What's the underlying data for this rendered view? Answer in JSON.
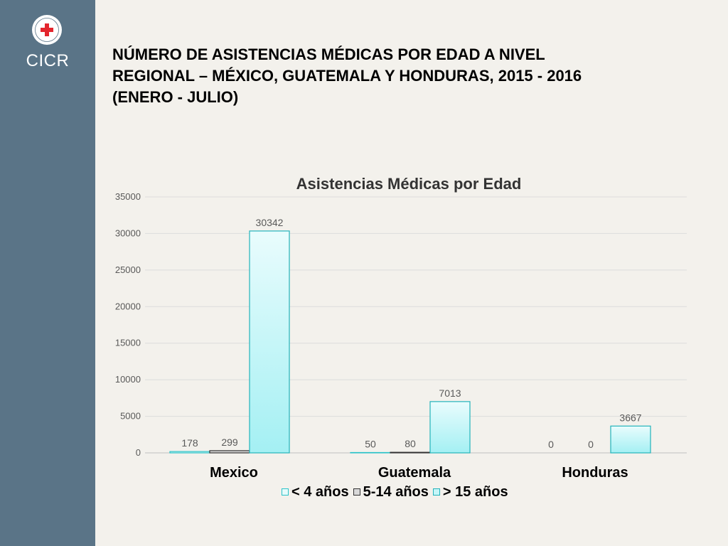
{
  "sidebar": {
    "org_name": "CICR",
    "logo_ring_text": "COMITÉ INTERNATIONAL GENÈVE",
    "sidebar_color": "#5a7487",
    "emblem_color": "#e3262e"
  },
  "slide": {
    "title_line1": "NÚMERO DE ASISTENCIAS MÉDICAS POR EDAD A NIVEL",
    "title_line2": "REGIONAL – MÉXICO, GUATEMALA Y HONDURAS, 2015 - 2016",
    "title_line3": "(ENERO - JULIO)"
  },
  "chart_data": {
    "type": "bar",
    "title": "Asistencias Médicas por Edad",
    "categories": [
      "Mexico",
      "Guatemala",
      "Honduras"
    ],
    "series": [
      {
        "name": "< 4 años",
        "values": [
          178,
          50,
          0
        ],
        "color": "#e6fbfb"
      },
      {
        "name": "5-14 años",
        "values": [
          299,
          80,
          0
        ],
        "color": "#d9d9d9"
      },
      {
        "name": "> 15 años",
        "values": [
          30342,
          7013,
          3667
        ],
        "color": "#b3f3f5"
      }
    ],
    "yticks": [
      "0",
      "5000",
      "10000",
      "15000",
      "20000",
      "25000",
      "30000",
      "35000"
    ],
    "ylim": [
      0,
      35000
    ],
    "grid": true,
    "legend_position": "bottom",
    "xlabel": "",
    "ylabel": ""
  }
}
